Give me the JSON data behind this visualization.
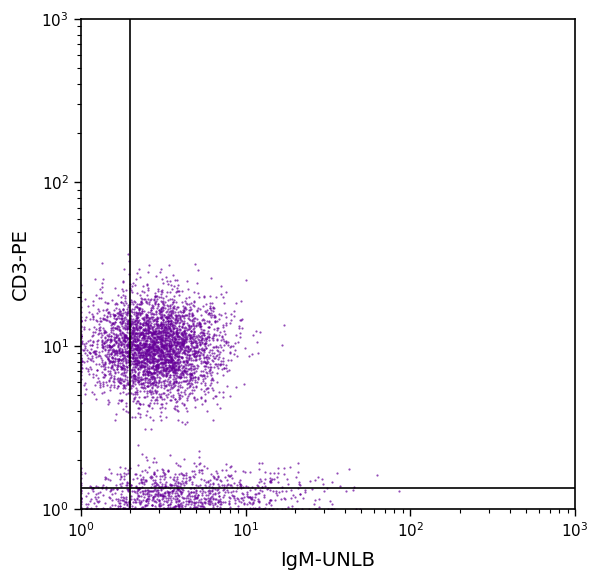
{
  "xlabel": "IgM-UNLB",
  "ylabel": "CD3-PE",
  "xlim_log": [
    0,
    3
  ],
  "ylim_log": [
    0,
    3
  ],
  "xline_log": 0.301,
  "yline": 1.35,
  "dot_color": "#660099",
  "dot_alpha": 0.7,
  "dot_size": 2.5,
  "background_color": "#ffffff",
  "cluster1": {
    "center_x_log": 0.45,
    "center_y_log": 1.0,
    "std_x": 0.2,
    "std_y": 0.16,
    "n": 3500
  },
  "cluster2": {
    "center_x_log": 0.45,
    "center_y_log": 0.05,
    "std_x": 0.2,
    "std_y": 0.1,
    "n": 500
  },
  "cluster3": {
    "center_x_log": 0.75,
    "center_y_log": 0.08,
    "std_x": 0.35,
    "std_y": 0.1,
    "n": 700
  },
  "seed": 42
}
